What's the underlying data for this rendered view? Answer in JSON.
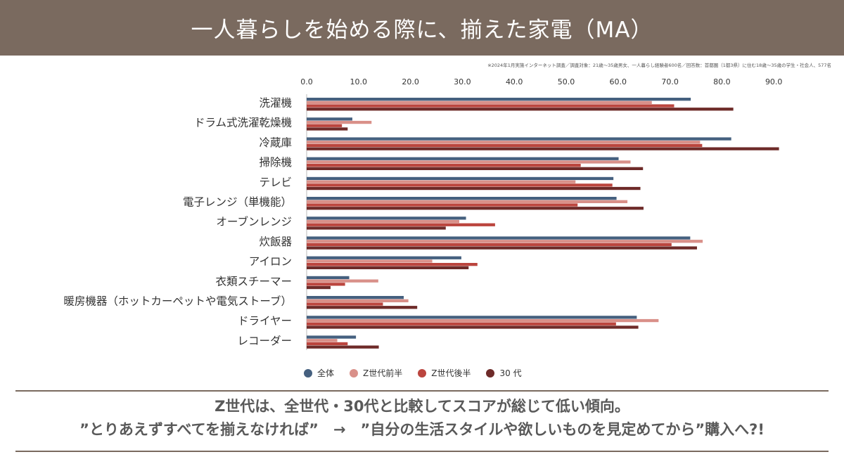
{
  "title": "一人暮らしを始める際に、揃えた家電（MA）",
  "survey_note": "※2024年1月実施インターネット調査／調査対象：21歳～35歳男女、一人暮らし経験者600名／回答数：首都圏（1都3県）に住む18歳～35歳の学生・社会人、577名",
  "colors": {
    "header_bg": "#7a6a5f",
    "series": [
      "#45607f",
      "#d99089",
      "#bb453e",
      "#6e2b29"
    ]
  },
  "chart_data": {
    "type": "bar",
    "orientation": "horizontal",
    "categories": [
      "洗濯機",
      "ドラム式洗濯乾燥機",
      "冷蔵庫",
      "掃除機",
      "テレビ",
      "電子レンジ（単機能）",
      "オーブンレンジ",
      "炊飯器",
      "アイロン",
      "衣類スチーマー",
      "暖房機器（ホットカーペットや電気ストーブ）",
      "ドライヤー",
      "レコーダー"
    ],
    "series": [
      {
        "name": "全体",
        "values": [
          74.0,
          8.8,
          81.8,
          60.1,
          59.1,
          59.7,
          30.7,
          73.9,
          29.8,
          8.2,
          18.7,
          63.6,
          9.5
        ]
      },
      {
        "name": "Z世代前半",
        "values": [
          66.5,
          12.5,
          75.8,
          62.4,
          51.8,
          61.8,
          29.4,
          76.3,
          24.2,
          13.8,
          19.6,
          67.8,
          5.9
        ]
      },
      {
        "name": "Z世代後半",
        "values": [
          70.8,
          6.8,
          76.2,
          52.8,
          58.9,
          52.2,
          36.3,
          70.3,
          32.9,
          7.4,
          14.7,
          59.6,
          7.9
        ]
      },
      {
        "name": "30 代",
        "values": [
          82.2,
          7.9,
          91.0,
          64.8,
          64.3,
          64.9,
          26.8,
          75.2,
          31.2,
          4.6,
          21.3,
          63.9,
          13.9
        ]
      }
    ],
    "xticks": [
      "0.0",
      "10.0",
      "20.0",
      "30.0",
      "40.0",
      "50.0",
      "60.0",
      "70.0",
      "80.0",
      "90.0"
    ],
    "xlim": [
      0,
      100
    ],
    "grid": false,
    "legend_position": "bottom"
  },
  "conclusion": {
    "line1": "Z世代は、全世代・30代と比較してスコアが総じて低い傾向。",
    "line2": "”とりあえずすべてを揃えなければ”　→　”自分の生活スタイルや欲しいものを見定めてから”購入へ?!"
  }
}
